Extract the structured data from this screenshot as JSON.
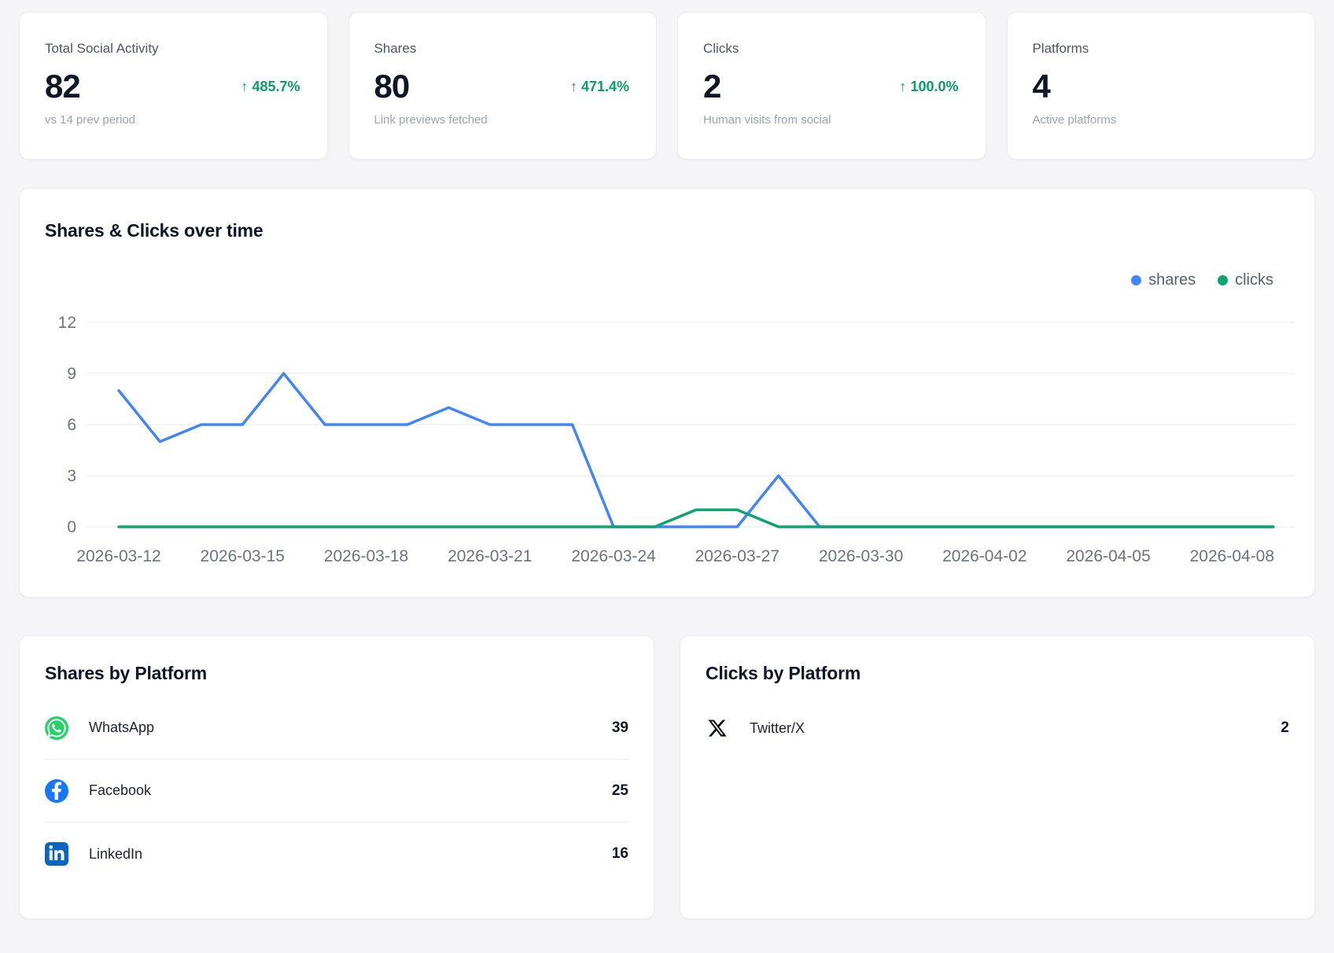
{
  "colors": {
    "positive": "#0a9d68",
    "whatsapp": "#25d366",
    "facebook": "#1877f2",
    "linkedin": "#0a66c2",
    "x": "#0f1419",
    "axis_text": "#6b7280",
    "gridline": "#e8e9ec"
  },
  "stats": [
    {
      "label": "Total Social Activity",
      "value": "82",
      "arrow": "↑",
      "delta": "485.7%",
      "sub": "vs 14 prev period"
    },
    {
      "label": "Shares",
      "value": "80",
      "arrow": "↑",
      "delta": "471.4%",
      "sub": "Link previews fetched"
    },
    {
      "label": "Clicks",
      "value": "2",
      "arrow": "↑",
      "delta": "100.0%",
      "sub": "Human visits from social"
    },
    {
      "label": "Platforms",
      "value": "4",
      "arrow": "",
      "delta": "",
      "sub": "Active platforms"
    }
  ],
  "chart": {
    "title": "Shares & Clicks over time",
    "legend": [
      {
        "label": "shares"
      },
      {
        "label": "clicks"
      }
    ]
  },
  "chart_data": {
    "type": "line",
    "title": "Shares & Clicks over time",
    "x": [
      "2026-03-12",
      "2026-03-13",
      "2026-03-14",
      "2026-03-15",
      "2026-03-16",
      "2026-03-17",
      "2026-03-18",
      "2026-03-19",
      "2026-03-20",
      "2026-03-21",
      "2026-03-22",
      "2026-03-23",
      "2026-03-24",
      "2026-03-25",
      "2026-03-26",
      "2026-03-27",
      "2026-03-28",
      "2026-03-29",
      "2026-03-30",
      "2026-03-31",
      "2026-04-01",
      "2026-04-02",
      "2026-04-03",
      "2026-04-04",
      "2026-04-05",
      "2026-04-06",
      "2026-04-07",
      "2026-04-08",
      "2026-04-09"
    ],
    "tick_every": 3,
    "yticks": [
      0,
      3,
      6,
      9,
      12
    ],
    "ylim": [
      0,
      12
    ],
    "grid": true,
    "legend_position": "top-right",
    "series": [
      {
        "name": "shares",
        "color": "#4285f4",
        "values": [
          8,
          5,
          6,
          6,
          9,
          6,
          6,
          6,
          7,
          6,
          6,
          6,
          0,
          0,
          0,
          0,
          3,
          0,
          0,
          0,
          0,
          0,
          0,
          0,
          0,
          0,
          0,
          0,
          0
        ]
      },
      {
        "name": "clicks",
        "color": "#11a36f",
        "values": [
          0,
          0,
          0,
          0,
          0,
          0,
          0,
          0,
          0,
          0,
          0,
          0,
          0,
          0,
          1,
          1,
          0,
          0,
          0,
          0,
          0,
          0,
          0,
          0,
          0,
          0,
          0,
          0,
          0
        ]
      }
    ]
  },
  "shares_by_platform": {
    "title": "Shares by Platform",
    "rows": [
      {
        "platform": "WhatsApp",
        "value": "39"
      },
      {
        "platform": "Facebook",
        "value": "25"
      },
      {
        "platform": "LinkedIn",
        "value": "16"
      }
    ]
  },
  "clicks_by_platform": {
    "title": "Clicks by Platform",
    "rows": [
      {
        "platform": "Twitter/X",
        "value": "2"
      }
    ]
  }
}
